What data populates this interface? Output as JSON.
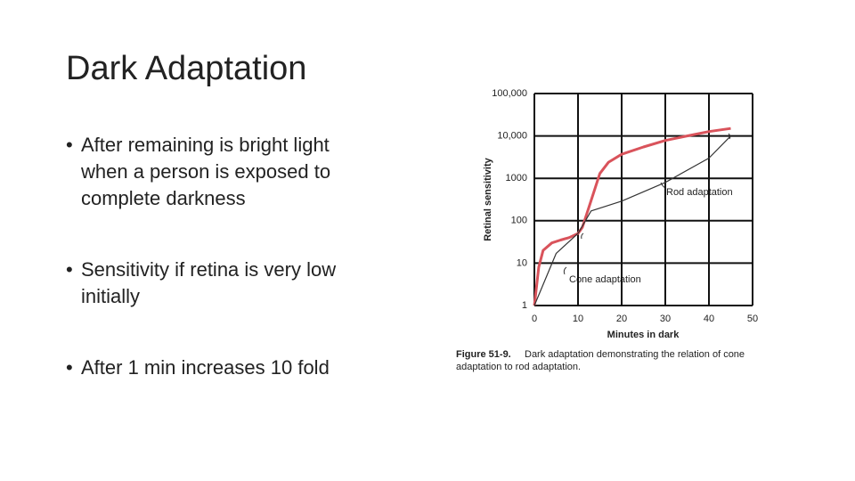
{
  "slide_title": "Dark Adaptation",
  "bullets": [
    "After remaining is bright light when a person is exposed to complete darkness",
    "Sensitivity if retina is very low initially",
    "After 1 min increases 10 fold"
  ],
  "chart_data": {
    "type": "line",
    "xlabel": "Minutes in dark",
    "ylabel": "Retinal sensitivity",
    "xlim": [
      0,
      50
    ],
    "xticks": [
      0,
      10,
      20,
      30,
      40,
      50
    ],
    "ylim": [
      1,
      100000
    ],
    "log_y": true,
    "yticks": [
      1,
      10,
      100,
      1000,
      {
        "value": 10000,
        "label": "10,000"
      },
      {
        "value": 100000,
        "label": "100,000"
      }
    ],
    "grid": true,
    "series": [
      {
        "color": "#d9535b",
        "x": [
          0,
          1,
          2,
          4,
          6,
          8,
          10,
          11,
          13,
          15,
          17,
          20,
          25,
          30,
          35,
          40,
          45
        ],
        "values": [
          1,
          8,
          20,
          30,
          35,
          40,
          50,
          70,
          300,
          1300,
          2400,
          3700,
          5500,
          7800,
          10000,
          12700,
          15000
        ]
      },
      {
        "color": "#333333",
        "x": [
          0,
          5,
          10,
          13,
          20,
          30,
          40,
          45
        ],
        "values": [
          1,
          17,
          50,
          170,
          290,
          800,
          3000,
          10000
        ]
      }
    ],
    "annotations": [
      "Rod adaptation",
      "Cone adaptation"
    ],
    "caption": {
      "label": "Figure 51-9.",
      "lines": [
        "Dark adaptation demonstrating the relation of cone",
        "adaptation to rod adaptation."
      ]
    }
  }
}
